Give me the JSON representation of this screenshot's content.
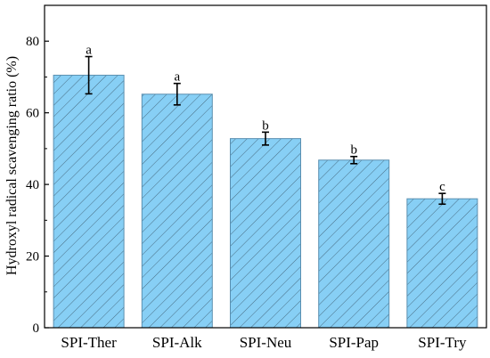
{
  "chart_data": {
    "type": "bar",
    "title": "",
    "xlabel": "",
    "ylabel": "Hydroxyl radical scavenging ratio (%)",
    "ylim": [
      0,
      90
    ],
    "yticks": [
      "0",
      "20",
      "40",
      "60",
      "80"
    ],
    "ytick_values": [
      0,
      20,
      40,
      60,
      80
    ],
    "categories": [
      "SPI-Ther",
      "SPI-Alk",
      "SPI-Neu",
      "SPI-Pap",
      "SPI-Try"
    ],
    "values": [
      70.5,
      65.2,
      52.8,
      46.8,
      36.0
    ],
    "errors": [
      5.2,
      3.0,
      1.8,
      1.0,
      1.5
    ],
    "significance": [
      "a",
      "a",
      "b",
      "b",
      "c"
    ],
    "bar_color": "#87cff5",
    "hatch_color": "#4a6f86",
    "grid": false
  }
}
